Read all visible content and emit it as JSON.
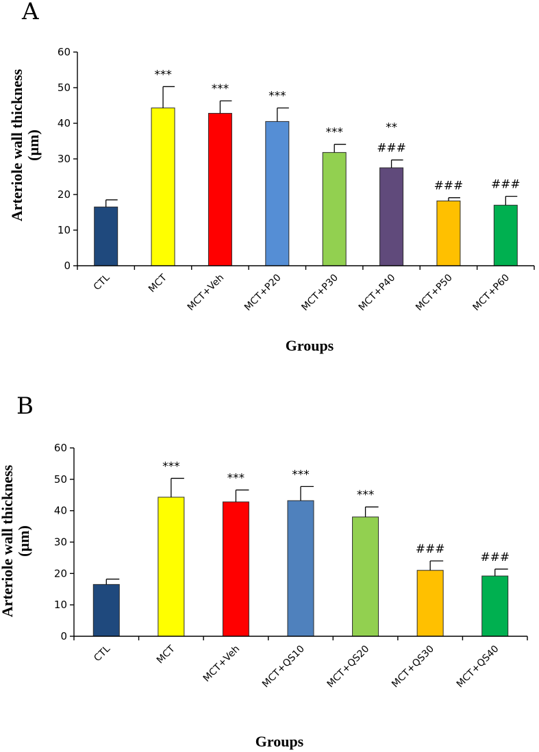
{
  "chart_data": [
    {
      "panel": "A",
      "type": "bar",
      "ylabel_line1": "Arteriole wall thickness",
      "ylabel_line2": "(µm)",
      "xlabel": "Groups",
      "ylim": [
        0,
        60
      ],
      "yticks": [
        "0",
        "10",
        "20",
        "30",
        "40",
        "50",
        "60"
      ],
      "categories": [
        "CTL",
        "MCT",
        "MCT+Veh",
        "MCT+P20",
        "MCT+P30",
        "MCT+P40",
        "MCT+P50",
        "MCT+P60"
      ],
      "values": [
        16.5,
        44.3,
        42.8,
        40.5,
        31.8,
        27.5,
        18.2,
        17.0
      ],
      "errors": [
        2.0,
        6.0,
        3.5,
        3.8,
        2.3,
        2.2,
        0.9,
        2.5
      ],
      "colors": [
        "#1f497d",
        "#ffff00",
        "#ff0000",
        "#558ed5",
        "#92d050",
        "#604a7b",
        "#ffc000",
        "#00b050"
      ],
      "significance": [
        [],
        [
          "***"
        ],
        [
          "***"
        ],
        [
          "***"
        ],
        [
          "***"
        ],
        [
          "**",
          "###"
        ],
        [
          "###"
        ],
        [
          "###"
        ]
      ]
    },
    {
      "panel": "B",
      "type": "bar",
      "ylabel_line1": "Arteriole wall thickness",
      "ylabel_line2": "(µm)",
      "xlabel": "Groups",
      "ylim": [
        0,
        60
      ],
      "yticks": [
        "0",
        "10",
        "20",
        "30",
        "40",
        "50",
        "60"
      ],
      "categories": [
        "CTL",
        "MCT",
        "MCT+Veh",
        "MCT+QS10",
        "MCT+QS20",
        "MCT+QS30",
        "MCT+QS40"
      ],
      "values": [
        16.5,
        44.3,
        42.8,
        43.2,
        38.0,
        21.0,
        19.2
      ],
      "errors": [
        1.7,
        6.0,
        3.8,
        4.5,
        3.2,
        3.0,
        2.2
      ],
      "colors": [
        "#1f497d",
        "#ffff00",
        "#ff0000",
        "#4f81bd",
        "#92d050",
        "#ffc000",
        "#00b050"
      ],
      "significance": [
        [],
        [
          "***"
        ],
        [
          "***"
        ],
        [
          "***"
        ],
        [
          "***"
        ],
        [
          "###"
        ],
        [
          "###"
        ]
      ]
    }
  ]
}
